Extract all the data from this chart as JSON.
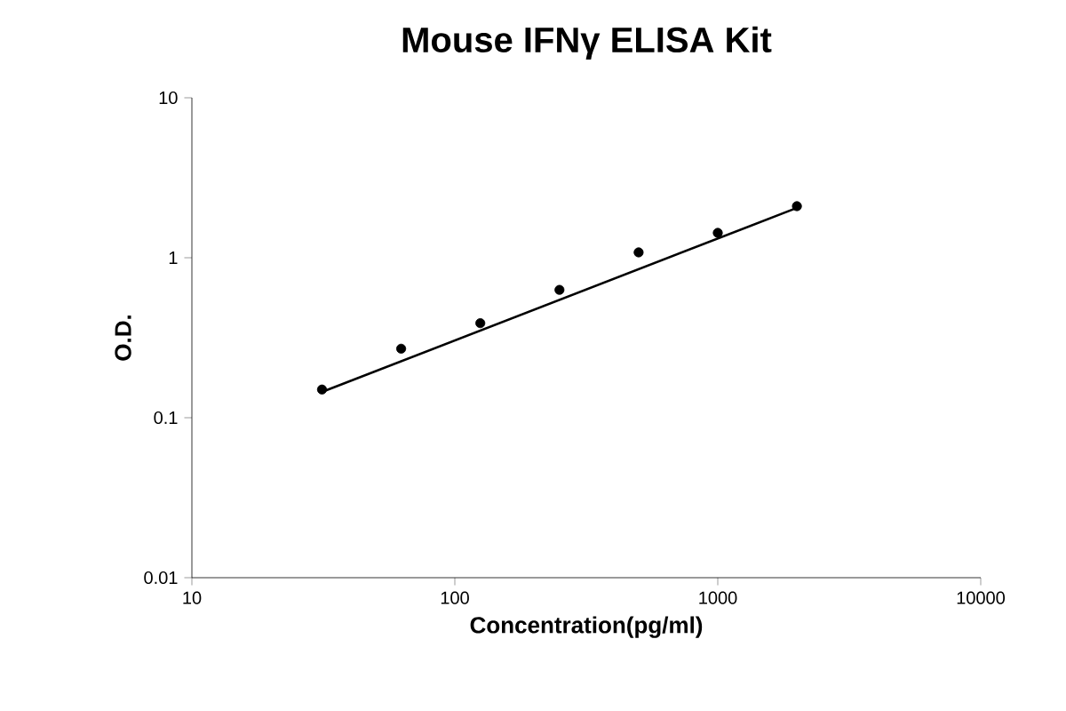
{
  "chart_data": {
    "type": "scatter",
    "title": "Mouse IFNγ ELISA Kit",
    "xlabel": "Concentration(pg/ml)",
    "ylabel": "O.D.",
    "log": "xy",
    "xlim": [
      10,
      10000
    ],
    "ylim": [
      0.01,
      10
    ],
    "xticks": [
      10,
      100,
      1000,
      10000
    ],
    "yticks": [
      0.01,
      0.1,
      1,
      10
    ],
    "series": [
      {
        "color": "#000000",
        "marker": "circle",
        "x": [
          31.25,
          62.5,
          125,
          250,
          500,
          1000,
          2000
        ],
        "values": [
          0.15,
          0.27,
          0.39,
          0.63,
          1.08,
          1.43,
          2.1
        ]
      },
      {
        "type": "line",
        "color": "#000000",
        "marker": "none",
        "line_style": "solid",
        "x": [
          31.25,
          2000
        ],
        "values": [
          0.145,
          2.05
        ]
      }
    ]
  }
}
